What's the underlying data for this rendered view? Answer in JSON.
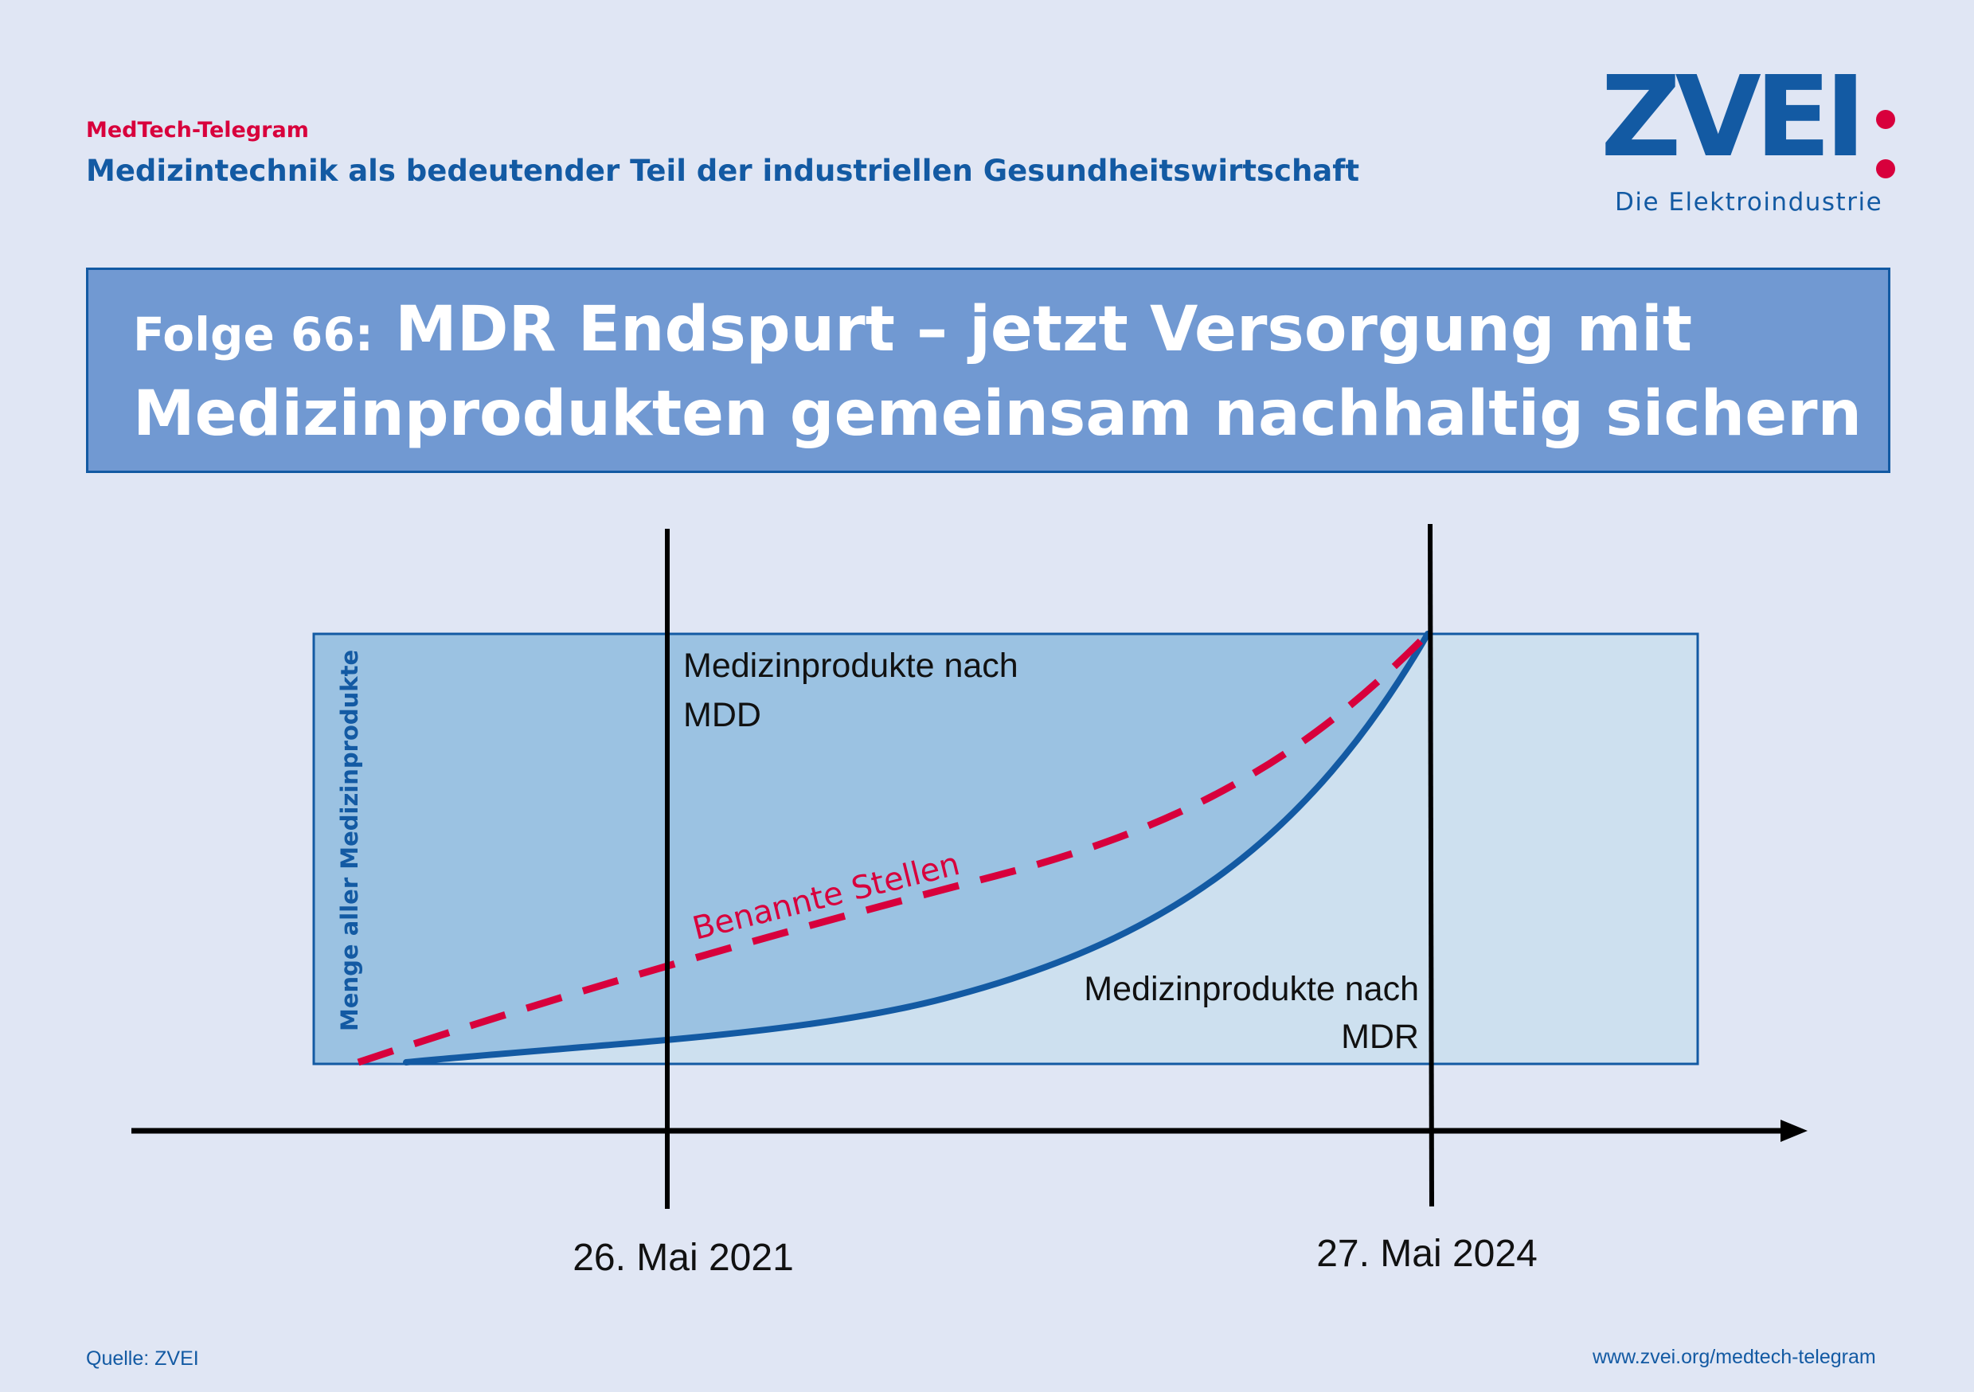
{
  "header": {
    "kicker": "MedTech-Telegram",
    "subtitle": "Medizintechnik als bedeutender Teil der industriellen Gesundheitswirtschaft"
  },
  "logo": {
    "wordmark": "ZVEI",
    "tagline": "Die Elektroindustrie"
  },
  "title": {
    "prefix": "Folge 66:",
    "line1": "MDR Endspurt – jetzt Versorgung mit",
    "line2": "Medizinprodukten gemeinsam nachhaltig sichern"
  },
  "diagram": {
    "y_axis_label": "Menge aller Medizinprodukte",
    "label_mdd": [
      "Medizinprodukte nach",
      "MDD"
    ],
    "label_mdr": [
      "Medizinprodukte nach",
      "MDR"
    ],
    "label_notified_bodies": "Benannte Stellen",
    "date_1": "26. Mai 2021",
    "date_2": "27. Mai 2024"
  },
  "footer": {
    "source": "Quelle: ZVEI",
    "url": "www.zvei.org/medtech-telegram"
  },
  "colors": {
    "background": "#e0e6f4",
    "brand_blue": "#135aa3",
    "accent_red": "#d8003c",
    "title_box": "#7199d2",
    "mdd_area": "#9bc2e2",
    "mdr_area": "#cde0ef"
  }
}
